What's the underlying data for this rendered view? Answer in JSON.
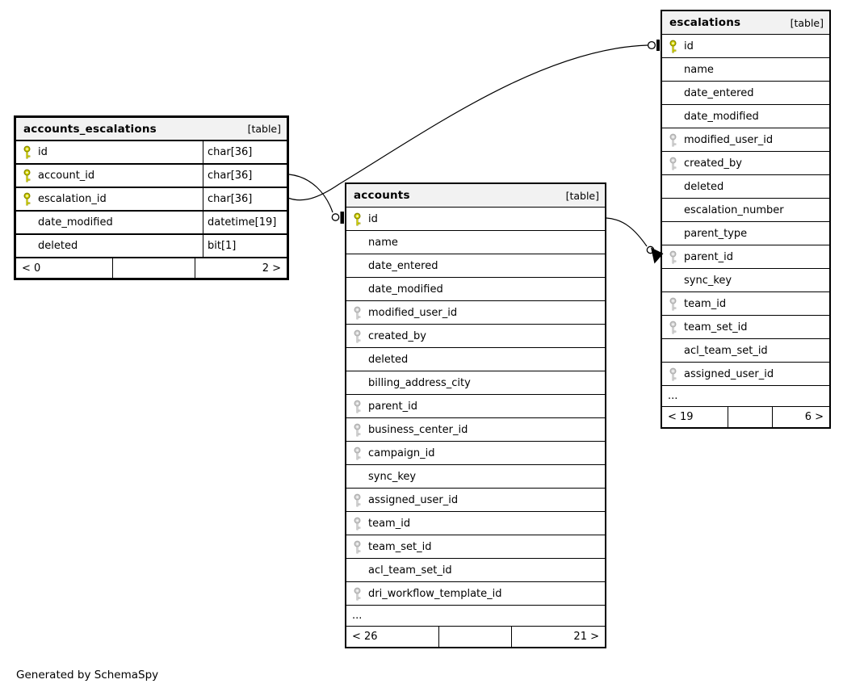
{
  "diagram": {
    "credit": "Generated by SchemaSpy",
    "colors": {
      "header_bg": "#f2f2f2",
      "row_bg": "#ffffff",
      "border": "#000000",
      "primary_key_fill": "#d9d900",
      "primary_key_stroke": "#8a8a00",
      "foreign_key_fill": "#d2d2d2",
      "foreign_key_stroke": "#b0b0b0"
    },
    "tables": [
      {
        "name": "accounts_escalations",
        "badge": "[table]",
        "columns": [
          {
            "name": "id",
            "type": "char[36]",
            "key": "primary"
          },
          {
            "name": "account_id",
            "type": "char[36]",
            "key": "primary"
          },
          {
            "name": "escalation_id",
            "type": "char[36]",
            "key": "primary"
          },
          {
            "name": "date_modified",
            "type": "datetime[19]",
            "key": "none"
          },
          {
            "name": "deleted",
            "type": "bit[1]",
            "key": "none"
          }
        ],
        "truncated": false,
        "ellipsis": "...",
        "footer": {
          "parents": "< 0",
          "children": "2 >"
        }
      },
      {
        "name": "accounts",
        "badge": "[table]",
        "columns": [
          {
            "name": "id",
            "key": "primary"
          },
          {
            "name": "name",
            "key": "none"
          },
          {
            "name": "date_entered",
            "key": "none"
          },
          {
            "name": "date_modified",
            "key": "none"
          },
          {
            "name": "modified_user_id",
            "key": "fk"
          },
          {
            "name": "created_by",
            "key": "fk"
          },
          {
            "name": "deleted",
            "key": "none"
          },
          {
            "name": "billing_address_city",
            "key": "none"
          },
          {
            "name": "parent_id",
            "key": "fk"
          },
          {
            "name": "business_center_id",
            "key": "fk"
          },
          {
            "name": "campaign_id",
            "key": "fk"
          },
          {
            "name": "sync_key",
            "key": "none"
          },
          {
            "name": "assigned_user_id",
            "key": "fk"
          },
          {
            "name": "team_id",
            "key": "fk"
          },
          {
            "name": "team_set_id",
            "key": "fk"
          },
          {
            "name": "acl_team_set_id",
            "key": "none"
          },
          {
            "name": "dri_workflow_template_id",
            "key": "fk"
          }
        ],
        "truncated": true,
        "ellipsis": "...",
        "footer": {
          "parents": "< 26",
          "children": "21 >"
        }
      },
      {
        "name": "escalations",
        "badge": "[table]",
        "columns": [
          {
            "name": "id",
            "key": "primary"
          },
          {
            "name": "name",
            "key": "none"
          },
          {
            "name": "date_entered",
            "key": "none"
          },
          {
            "name": "date_modified",
            "key": "none"
          },
          {
            "name": "modified_user_id",
            "key": "fk"
          },
          {
            "name": "created_by",
            "key": "fk"
          },
          {
            "name": "deleted",
            "key": "none"
          },
          {
            "name": "escalation_number",
            "key": "none"
          },
          {
            "name": "parent_type",
            "key": "none"
          },
          {
            "name": "parent_id",
            "key": "fk"
          },
          {
            "name": "sync_key",
            "key": "none"
          },
          {
            "name": "team_id",
            "key": "fk"
          },
          {
            "name": "team_set_id",
            "key": "fk"
          },
          {
            "name": "acl_team_set_id",
            "key": "none"
          },
          {
            "name": "assigned_user_id",
            "key": "fk"
          }
        ],
        "truncated": true,
        "ellipsis": "...",
        "footer": {
          "parents": "< 19",
          "children": "6 >"
        }
      }
    ],
    "relationships": [
      {
        "from": "accounts_escalations.account_id",
        "to": "accounts.id"
      },
      {
        "from": "accounts_escalations.escalation_id",
        "to": "escalations.id"
      },
      {
        "from": "accounts.id",
        "to": "escalations.parent_id"
      }
    ]
  }
}
